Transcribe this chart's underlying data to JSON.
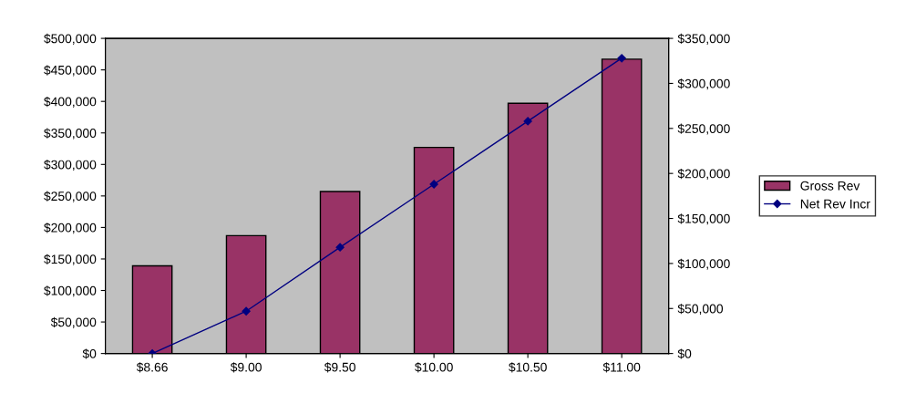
{
  "chart_data": {
    "type": "bar",
    "categories": [
      "$8.66",
      "$9.00",
      "$9.50",
      "$10.00",
      "$10.50",
      "$11.00"
    ],
    "series": [
      {
        "name": "Gross Rev",
        "color": "#993366",
        "values": [
          139000,
          187000,
          257000,
          327000,
          397000,
          467000
        ]
      },
      {
        "name": "Net Rev Incr",
        "type": "line",
        "axis": "y2",
        "color": "#000080",
        "marker": "diamond",
        "values": [
          0,
          47000,
          118000,
          188000,
          258000,
          328000
        ]
      }
    ],
    "ylim": [
      0,
      500000
    ],
    "yticks": [
      {
        "value": 0,
        "label": "$0"
      },
      {
        "value": 50000,
        "label": "$50,000"
      },
      {
        "value": 100000,
        "label": "$100,000"
      },
      {
        "value": 150000,
        "label": "$150,000"
      },
      {
        "value": 200000,
        "label": "$200,000"
      },
      {
        "value": 250000,
        "label": "$250,000"
      },
      {
        "value": 300000,
        "label": "$300,000"
      },
      {
        "value": 350000,
        "label": "$350,000"
      },
      {
        "value": 400000,
        "label": "$400,000"
      },
      {
        "value": 450000,
        "label": "$450,000"
      },
      {
        "value": 500000,
        "label": "$500,000"
      }
    ],
    "y2lim": [
      0,
      350000
    ],
    "y2ticks": [
      {
        "value": 0,
        "label": "$0"
      },
      {
        "value": 50000,
        "label": "$50,000"
      },
      {
        "value": 100000,
        "label": "$100,000"
      },
      {
        "value": 150000,
        "label": "$150,000"
      },
      {
        "value": 200000,
        "label": "$200,000"
      },
      {
        "value": 250000,
        "label": "$250,000"
      },
      {
        "value": 300000,
        "label": "$300,000"
      },
      {
        "value": 350000,
        "label": "$350,000"
      }
    ],
    "grid": false,
    "legend": "right"
  }
}
